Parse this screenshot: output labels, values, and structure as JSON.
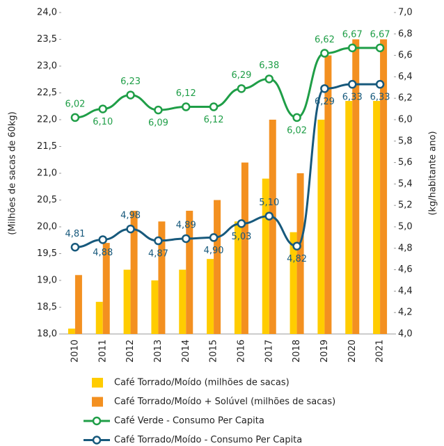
{
  "chart_data": {
    "type": "bar",
    "categories": [
      "2010",
      "2011",
      "2012",
      "2013",
      "2014",
      "2015",
      "2016",
      "2017",
      "2018",
      "2019",
      "2020",
      "2021"
    ],
    "y_label": "(Milhões de sacas de 60kg)",
    "y2_label": "(kg/habitante ano)",
    "ylim": [
      18.0,
      24.0
    ],
    "yticks": [
      {
        "value": 18.0,
        "label": "18,0"
      },
      {
        "value": 18.5,
        "label": "18,5"
      },
      {
        "value": 19.0,
        "label": "19,0"
      },
      {
        "value": 19.5,
        "label": "19,5"
      },
      {
        "value": 20.0,
        "label": "20,0"
      },
      {
        "value": 20.5,
        "label": "20,5"
      },
      {
        "value": 21.0,
        "label": "21,0"
      },
      {
        "value": 21.5,
        "label": "21,5"
      },
      {
        "value": 22.0,
        "label": "22,0"
      },
      {
        "value": 22.5,
        "label": "22,5"
      },
      {
        "value": 23.0,
        "label": "23,0"
      },
      {
        "value": 23.5,
        "label": "23,5"
      },
      {
        "value": 24.0,
        "label": "24,0"
      }
    ],
    "y2lim": [
      4.0,
      7.0
    ],
    "y2ticks": [
      {
        "value": 4.0,
        "label": "4,0"
      },
      {
        "value": 4.2,
        "label": "4,2"
      },
      {
        "value": 4.4,
        "label": "4,4"
      },
      {
        "value": 4.6,
        "label": "4,6"
      },
      {
        "value": 4.8,
        "label": "4,8"
      },
      {
        "value": 5.0,
        "label": "5,0"
      },
      {
        "value": 5.2,
        "label": "5,2"
      },
      {
        "value": 5.4,
        "label": "5,4"
      },
      {
        "value": 5.6,
        "label": "5,6"
      },
      {
        "value": 5.8,
        "label": "5,8"
      },
      {
        "value": 6.0,
        "label": "6,0"
      },
      {
        "value": 6.2,
        "label": "6,2"
      },
      {
        "value": 6.4,
        "label": "6,4"
      },
      {
        "value": 6.6,
        "label": "6,6"
      },
      {
        "value": 6.8,
        "label": "6,8"
      },
      {
        "value": 7.0,
        "label": "7,0"
      }
    ],
    "series": [
      {
        "name": "Café Torrado/Moído (milhões de sacas)",
        "type": "bar",
        "color": "#ffcc00",
        "values": [
          18.1,
          18.6,
          19.2,
          19.0,
          19.2,
          19.4,
          20.1,
          20.9,
          19.9,
          22.0,
          22.35,
          22.35
        ]
      },
      {
        "name": "Café Torrado/Moído + Solúvel (milhões de sacas)",
        "type": "bar",
        "color": "#f39020",
        "values": [
          19.1,
          19.7,
          20.3,
          20.1,
          20.3,
          20.5,
          21.2,
          22.0,
          21.0,
          23.2,
          23.5,
          23.5
        ]
      },
      {
        "name": "Café Verde - Consumo Per Capita",
        "type": "line",
        "axis": "y2",
        "color": "#1f9e47",
        "values": [
          6.02,
          6.1,
          6.23,
          6.09,
          6.12,
          6.12,
          6.29,
          6.38,
          6.02,
          6.62,
          6.67,
          6.67
        ],
        "value_labels": [
          "6,02",
          "6,10",
          "6,23",
          "6,09",
          "6,12",
          "6,12",
          "6,29",
          "6,38",
          "6,02",
          "6,62",
          "6,67",
          "6,67"
        ]
      },
      {
        "name": "Café Torrado/Moído - Consumo Per Capita",
        "type": "line",
        "axis": "y2",
        "color": "#17597c",
        "values": [
          4.81,
          4.88,
          4.98,
          4.87,
          4.89,
          4.9,
          5.03,
          5.1,
          4.82,
          6.29,
          6.33,
          6.33
        ],
        "value_labels": [
          "4,81",
          "4,88",
          "4,98",
          "4,87",
          "4,89",
          "4,90",
          "5,03",
          "5,10",
          "4,82",
          "6,29",
          "6,33",
          "6,33"
        ]
      }
    ]
  }
}
